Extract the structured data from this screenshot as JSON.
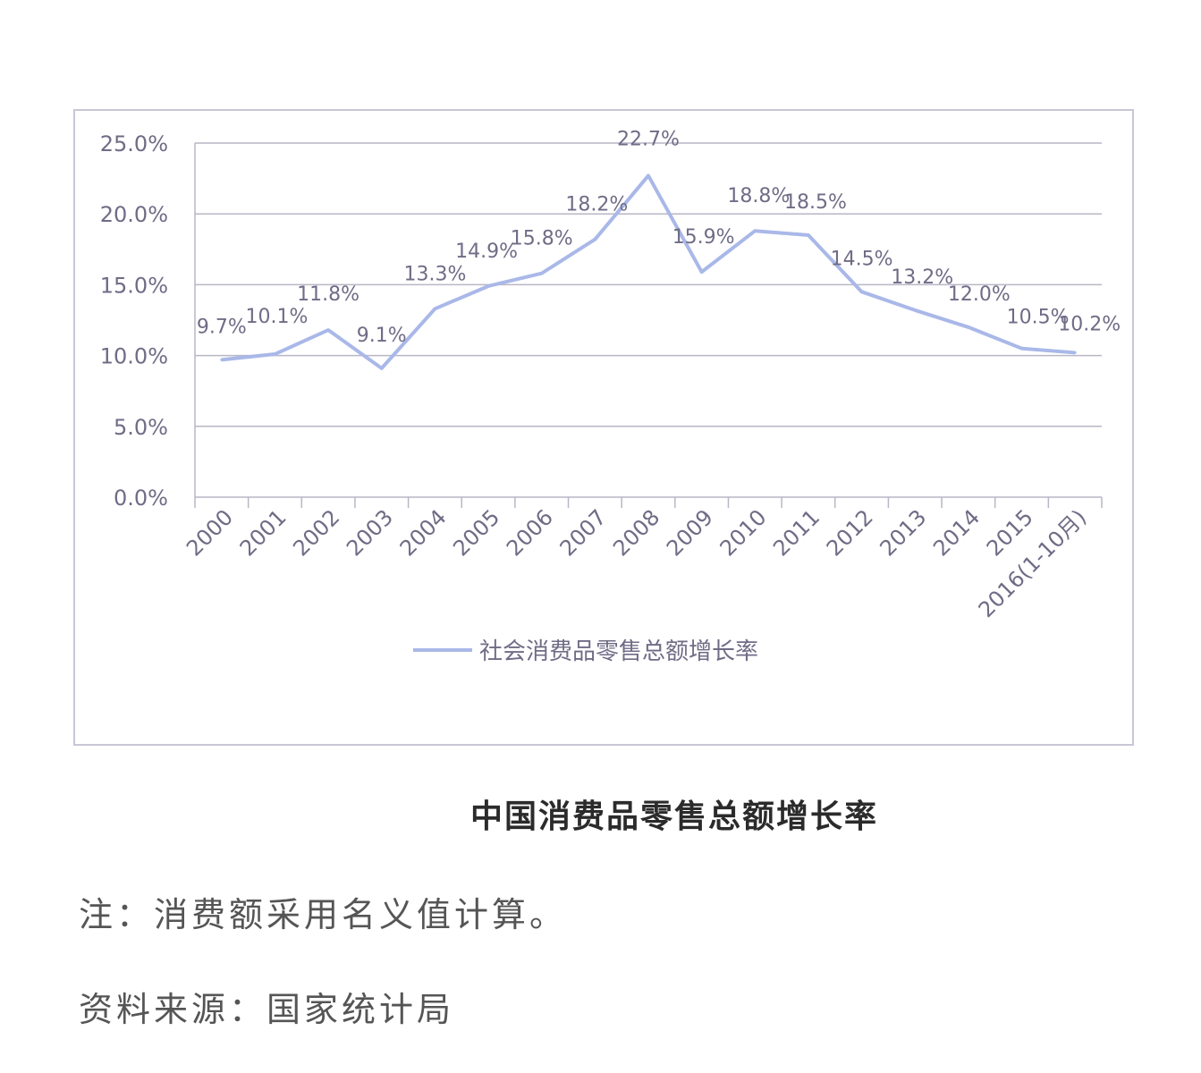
{
  "chart_data": {
    "type": "line",
    "title": "中国消费品零售总额增长率",
    "categories": [
      "2000",
      "2001",
      "2002",
      "2003",
      "2004",
      "2005",
      "2006",
      "2007",
      "2008",
      "2009",
      "2010",
      "2011",
      "2012",
      "2013",
      "2014",
      "2015",
      "2016(1-10月)"
    ],
    "series": [
      {
        "name": "社会消费品零售总额增长率",
        "values": [
          9.7,
          10.1,
          11.8,
          9.1,
          13.3,
          14.9,
          15.8,
          18.2,
          22.7,
          15.9,
          18.8,
          18.5,
          14.5,
          13.2,
          12.0,
          10.5,
          10.2
        ],
        "labels": [
          "9.7%",
          "10.1%",
          "11.8%",
          "9.1%",
          "13.3%",
          "14.9%",
          "15.8%",
          "18.2%",
          "22.7%",
          "15.9%",
          "18.8%",
          "18.5%",
          "14.5%",
          "13.2%",
          "12.0%",
          "10.5%",
          "10.2%"
        ],
        "color": "#a9b8e8"
      }
    ],
    "yticks": [
      "0.0%",
      "5.0%",
      "10.0%",
      "15.0%",
      "20.0%",
      "25.0%"
    ],
    "ylim": [
      0,
      25
    ],
    "grid": true,
    "legend": "bottom"
  },
  "notes": {
    "note": "注：消费额采用名义值计算。",
    "source": "资料来源：国家统计局"
  }
}
